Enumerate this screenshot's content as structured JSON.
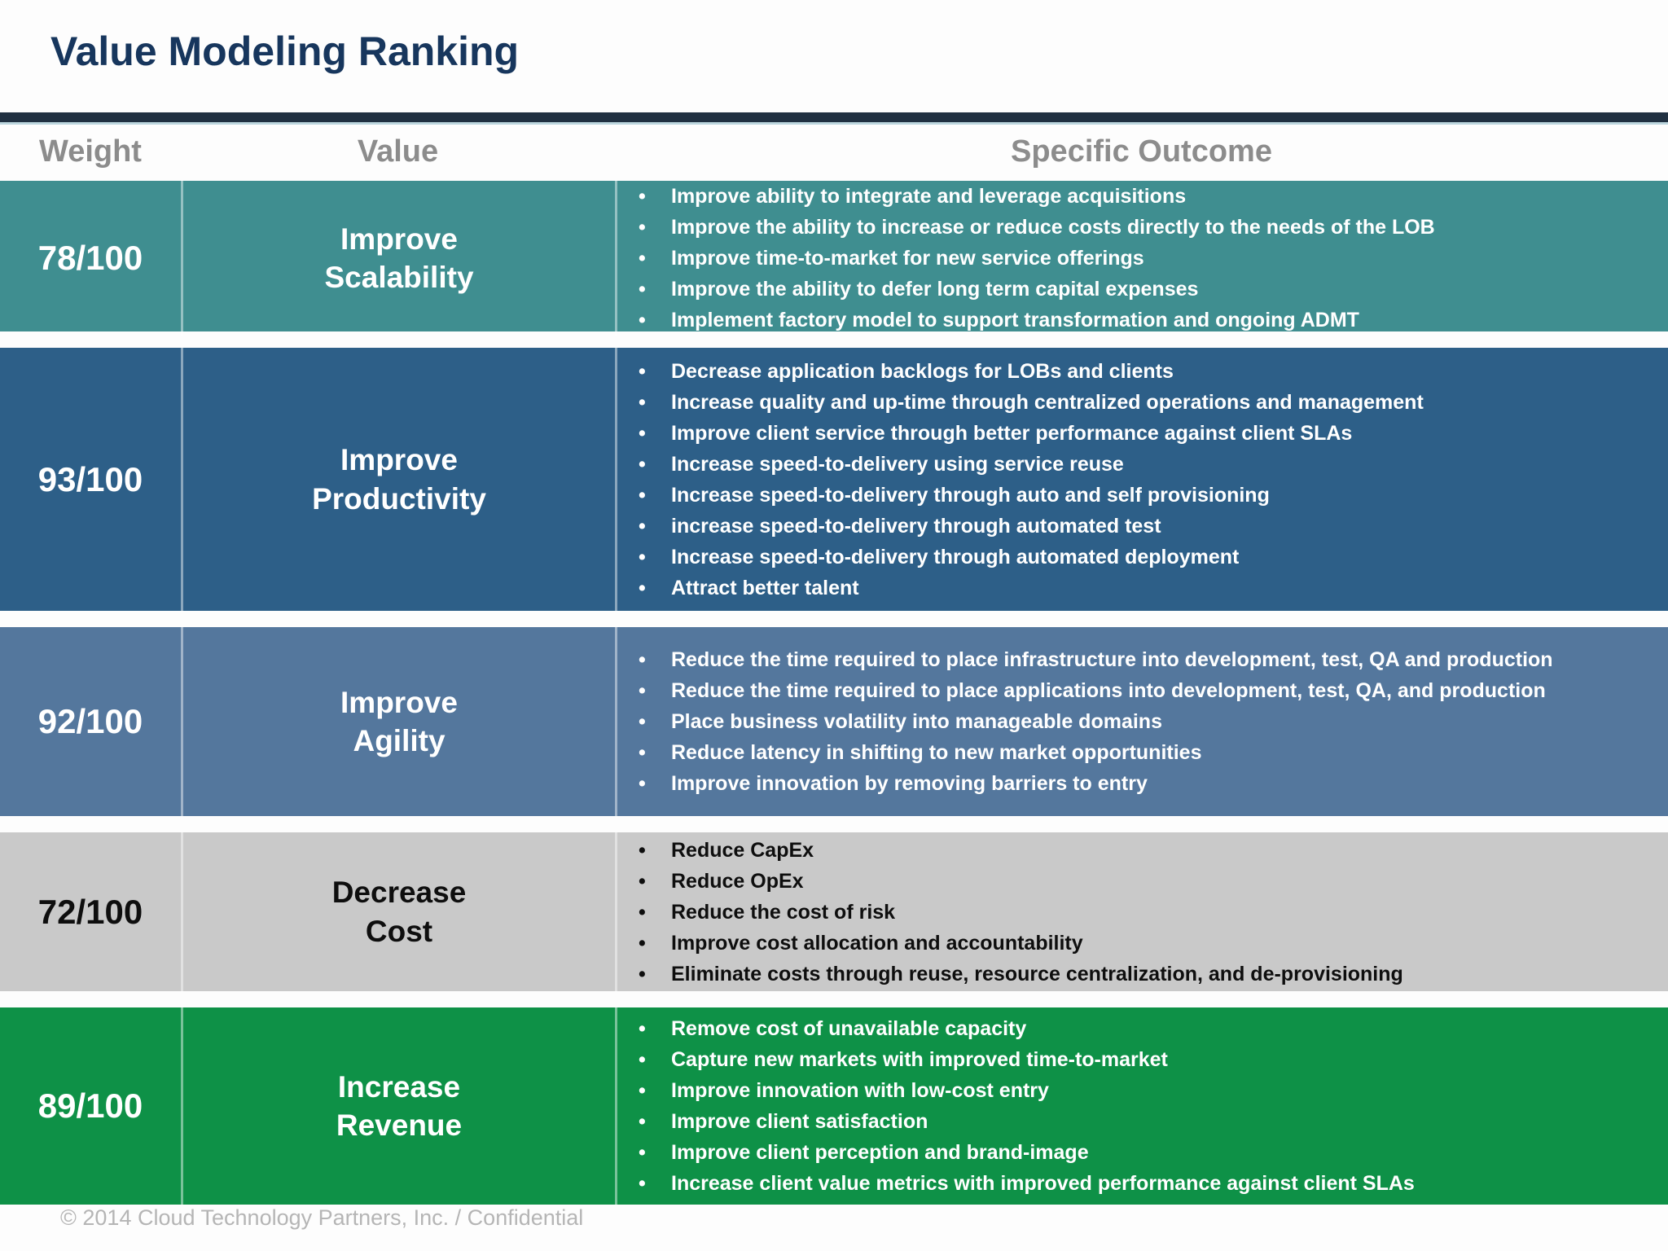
{
  "title": "Value Modeling Ranking",
  "footer": "© 2014 Cloud Technology Partners, Inc.  /  Confidential",
  "colors": {
    "title_text": "#17365d",
    "title_rule": "#203041",
    "header_text": "#8c8c8c",
    "footer_text": "#b5b5b5"
  },
  "table": {
    "headers": {
      "weight": "Weight",
      "value": "Value",
      "outcome": "Specific Outcome"
    },
    "rows": [
      {
        "weight": "78/100",
        "value_line1": "Improve",
        "value_line2": "Scalability",
        "color": "#3f8e90",
        "text_color": "#ffffff",
        "outcomes": [
          "Improve ability to integrate and leverage acquisitions",
          "Improve  the ability to increase or reduce costs directly to the needs of the LOB",
          "Improve time-to-market for new service offerings",
          "Improve the ability to defer long term capital expenses",
          "Implement factory model to support transformation and ongoing ADMT"
        ]
      },
      {
        "weight": "93/100",
        "value_line1": "Improve",
        "value_line2": "Productivity",
        "color": "#2d5f88",
        "text_color": "#ffffff",
        "outcomes": [
          "Decrease application backlogs for LOBs and clients",
          "Increase quality and up-time through centralized operations and management",
          "Improve client service through better performance against client SLAs",
          "Increase speed-to-delivery using service reuse",
          "Increase speed-to-delivery through auto and self provisioning",
          "increase speed-to-delivery through automated test",
          "Increase speed-to-delivery through automated deployment",
          "Attract better talent"
        ]
      },
      {
        "weight": "92/100",
        "value_line1": "Improve",
        "value_line2": "Agility",
        "color": "#54779d",
        "text_color": "#ffffff",
        "outcomes": [
          "Reduce the time required to place infrastructure into development, test, QA and production",
          "Reduce the time required to place applications into development, test, QA, and production",
          "Place business volatility into manageable domains",
          "Reduce latency in shifting to new market opportunities",
          "Improve innovation by removing barriers to entry"
        ]
      },
      {
        "weight": "72/100",
        "value_line1": "Decrease",
        "value_line2": "Cost",
        "color": "#c9c9c9",
        "text_color": "#0e0e0e",
        "outcomes": [
          "Reduce CapEx",
          "Reduce OpEx",
          "Reduce the cost of risk",
          "Improve cost allocation and accountability",
          "Eliminate costs through reuse, resource centralization, and de-provisioning"
        ]
      },
      {
        "weight": "89/100",
        "value_line1": "Increase",
        "value_line2": "Revenue",
        "color": "#0e9147",
        "text_color": "#ffffff",
        "outcomes": [
          "Remove cost of unavailable capacity",
          "Capture new markets with improved time-to-market",
          "Improve innovation with low-cost entry",
          "Improve client satisfaction",
          "Improve client perception and brand-image",
          "Increase client value metrics with improved performance against client SLAs"
        ]
      }
    ]
  }
}
